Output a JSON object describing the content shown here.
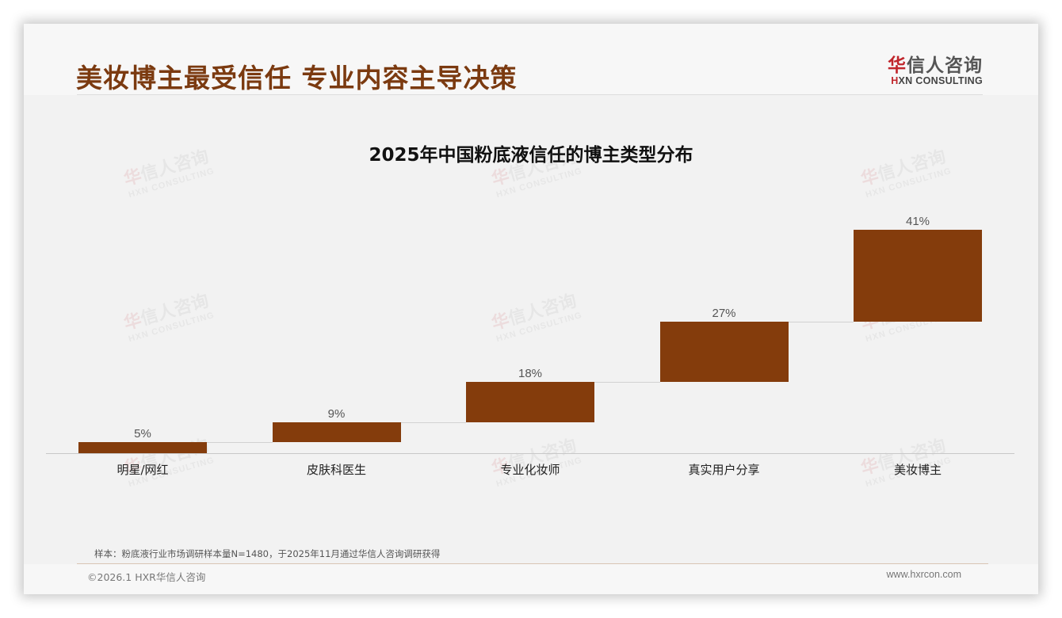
{
  "header": {
    "title": "美妆博主最受信任 专业内容主导决策",
    "logo_cn_accent": "华",
    "logo_cn_rest": "信人咨询",
    "logo_en_accent": "H",
    "logo_en_rest": "XN CONSULTING"
  },
  "watermark": {
    "cn_accent": "华",
    "cn_rest": "信人咨询",
    "en": "HXN CONSULTING"
  },
  "colors": {
    "title": "#7b3a10",
    "bar": "#843c0c",
    "logo_accent": "#c0252b",
    "background": "#f2f2f2"
  },
  "chart_data": {
    "type": "bar",
    "subtype": "waterfall",
    "title": "2025年中国粉底液信任的博主类型分布",
    "categories": [
      "明星/网红",
      "皮肤科医生",
      "专业化妆师",
      "真实用户分享",
      "美妆博主"
    ],
    "values": [
      5,
      9,
      18,
      27,
      41
    ],
    "value_labels": [
      "5%",
      "9%",
      "18%",
      "27%",
      "41%"
    ],
    "unit": "%",
    "xlabel": "",
    "ylabel": "",
    "ylim": [
      0,
      100
    ],
    "grid": false,
    "legend": "none",
    "data_labels": true
  },
  "footer": {
    "footnote": "样本：粉底液行业市场调研样本量N=1480，于2025年11月通过华信人咨询调研获得",
    "copyright": "©2026.1 HXR华信人咨询",
    "website": "www.hxrcon.com"
  }
}
